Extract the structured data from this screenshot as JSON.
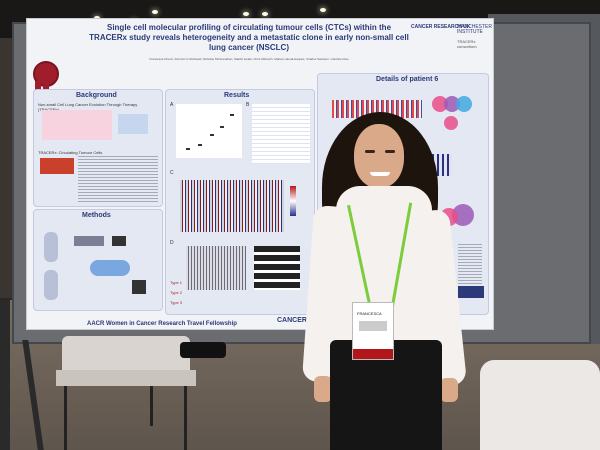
{
  "poster": {
    "title": "Single cell molecular profiling of circulating tumour cells (CTCs) within the TRACERx study reveals heterogeneity and a metastatic clone in early non-small cell lung cancer (NSCLC)",
    "authors": "Francesca Chemi, Dominic G Rothwell, Nicholas McGranahan, Sakshi Gulati, Chris Abbosch, Mariam Jamal-Hanjani, Charles Swanton, Caroline Dive",
    "logo_cancer_research": "CANCER RESEARCH UK",
    "logo_manchester": "MANCHESTER INSTITUTE",
    "logo_tracerx": "TRACERx consortium",
    "sections": {
      "background": "Background",
      "background_sub": "Non-small Cell Lung Cancer Evolution Through Therapy (TRACERx)",
      "tracerx_ctc": "TRACERx: Circulating Tumour Cells",
      "methods": "Methods",
      "results": "Results",
      "details": "Details of patient 6"
    },
    "labels": {
      "a": "A",
      "b": "B",
      "c": "C",
      "d": "D",
      "e": "E",
      "type1": "Type 1",
      "type2": "Type 2",
      "type3": "Type 3"
    },
    "footer": "AACR Women in Cancer Research Travel Fellowship",
    "footer_logo": "CANCER UK"
  },
  "badge": {
    "name": "FRANCESCA"
  },
  "colors": {
    "poster_bg": "#f2f3f7",
    "poster_title": "#2b3a78",
    "lanyard": "#7ccd3a",
    "rosette": "#a01e2c"
  }
}
